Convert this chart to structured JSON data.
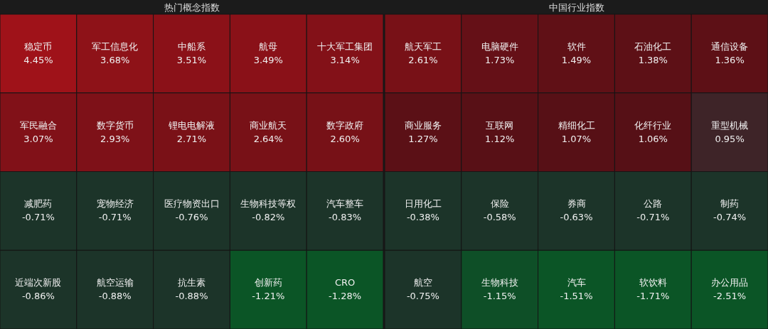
{
  "chart_data": [
    {
      "type": "other",
      "title": "热门概念指数",
      "categories": [
        "稳定币",
        "军工信息化",
        "中船系",
        "航母",
        "十大军工集团",
        "军民融合",
        "数字货币",
        "锂电电解液",
        "商业航天",
        "数字政府",
        "减肥药",
        "宠物经济",
        "医疗物资出口",
        "生物科技等权",
        "汽车整车",
        "近端次新股",
        "航空运输",
        "抗生素",
        "创新药",
        "CRO"
      ],
      "values": [
        4.45,
        3.68,
        3.51,
        3.49,
        3.14,
        3.07,
        2.93,
        2.71,
        2.64,
        2.6,
        -0.71,
        -0.71,
        -0.76,
        -0.82,
        -0.83,
        -0.86,
        -0.88,
        -0.88,
        -1.21,
        -1.28
      ],
      "value_labels": [
        "4.45%",
        "3.68%",
        "3.51%",
        "3.49%",
        "3.14%",
        "3.07%",
        "2.93%",
        "2.71%",
        "2.64%",
        "2.60%",
        "-0.71%",
        "-0.71%",
        "-0.76%",
        "-0.82%",
        "-0.83%",
        "-0.86%",
        "-0.88%",
        "-0.88%",
        "-1.21%",
        "-1.28%"
      ]
    },
    {
      "type": "other",
      "title": "中国行业指数",
      "categories": [
        "航天军工",
        "电脑硬件",
        "软件",
        "石油化工",
        "通信设备",
        "商业服务",
        "互联网",
        "精细化工",
        "化纤行业",
        "重型机械",
        "日用化工",
        "保险",
        "券商",
        "公路",
        "制药",
        "航空",
        "生物科技",
        "汽车",
        "软饮料",
        "办公用品"
      ],
      "values": [
        2.61,
        1.73,
        1.49,
        1.38,
        1.36,
        1.27,
        1.12,
        1.07,
        1.06,
        0.95,
        -0.38,
        -0.58,
        -0.63,
        -0.71,
        -0.74,
        -0.75,
        -1.15,
        -1.51,
        -1.71,
        -2.51
      ],
      "value_labels": [
        "2.61%",
        "1.73%",
        "1.49%",
        "1.38%",
        "1.36%",
        "1.27%",
        "1.12%",
        "1.07%",
        "1.06%",
        "0.95%",
        "-0.38%",
        "-0.58%",
        "-0.63%",
        "-0.71%",
        "-0.74%",
        "-0.75%",
        "-1.15%",
        "-1.51%",
        "-1.71%",
        "-2.51%"
      ]
    }
  ]
}
